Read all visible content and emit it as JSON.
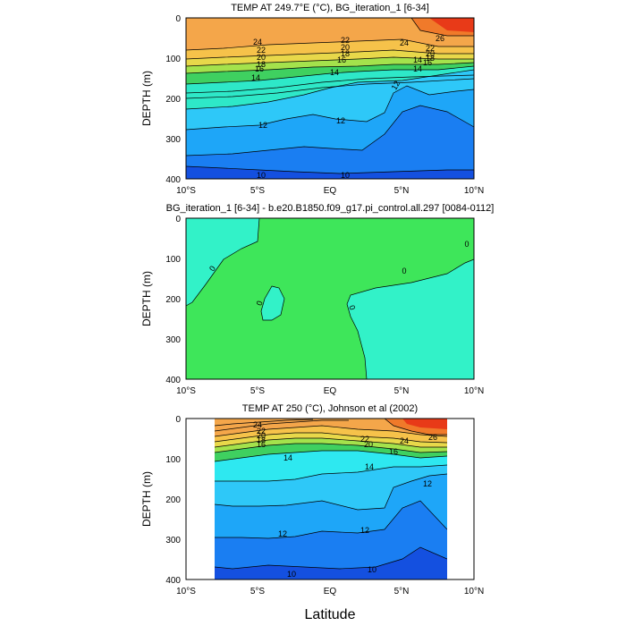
{
  "chart_data": [
    {
      "type": "contour",
      "title": "TEMP AT 249.7°E (°C), BG_iteration_1 [6-34]",
      "xlabel": "Latitude",
      "ylabel": "DEPTH (m)",
      "xlim": [
        -10,
        10
      ],
      "ylim": [
        400,
        0
      ],
      "x_ticks": [
        "10°S",
        "5°S",
        "EQ",
        "5°N",
        "10°N"
      ],
      "y_ticks": [
        "0",
        "100",
        "200",
        "300",
        "400"
      ],
      "contour_labels": [
        "24",
        "22",
        "20",
        "18",
        "16",
        "14",
        "12",
        "12",
        "12",
        "10",
        "10",
        "22",
        "20",
        "18",
        "16",
        "14",
        "14",
        "24",
        "26",
        "22",
        "20",
        "18",
        "16",
        "14"
      ],
      "bands": [
        {
          "range": "24-28",
          "color": "#f4a64a"
        },
        {
          "range": "22-24",
          "color": "#f6c24a"
        },
        {
          "range": "20-22",
          "color": "#e8d84a"
        },
        {
          "range": "18-20",
          "color": "#a4e24c"
        },
        {
          "range": "16-18",
          "color": "#3fd060"
        },
        {
          "range": "14-16",
          "color": "#2ee8c8"
        },
        {
          "range": "12-14",
          "color": "#2ec8f8"
        },
        {
          "range": "11-12",
          "color": "#1ea6f8"
        },
        {
          "range": "10-11",
          "color": "#1a7ef2"
        },
        {
          "range": "<10",
          "color": "#1450e0"
        }
      ]
    },
    {
      "type": "contour",
      "title": "BG_iteration_1 [6-34] - b.e20.B1850.f09_g17.pi_control.all.297 [0084-0112]",
      "xlabel": "Latitude",
      "ylabel": "DEPTH (m)",
      "xlim": [
        -10,
        10
      ],
      "ylim": [
        400,
        0
      ],
      "x_ticks": [
        "10°S",
        "5°S",
        "EQ",
        "5°N",
        "10°N"
      ],
      "y_ticks": [
        "0",
        "100",
        "200",
        "300",
        "400"
      ],
      "contour_labels": [
        "0",
        "0",
        "0",
        "0",
        "0"
      ],
      "bands": [
        {
          "range": "<0",
          "color": "#32f2c8"
        },
        {
          "range": "0-2",
          "color": "#3ee65a"
        }
      ]
    },
    {
      "type": "contour",
      "title": "TEMP AT 250 (°C), Johnson et al (2002)",
      "xlabel": "Latitude",
      "ylabel": "DEPTH (m)",
      "xlim": [
        -10,
        10
      ],
      "ylim": [
        400,
        0
      ],
      "x_ticks": [
        "10°S",
        "5°S",
        "EQ",
        "5°N",
        "10°N"
      ],
      "y_ticks": [
        "0",
        "100",
        "200",
        "300",
        "400"
      ],
      "contour_labels": [
        "24",
        "22",
        "20",
        "18",
        "16",
        "14",
        "14",
        "12",
        "12",
        "12",
        "10",
        "10",
        "22",
        "20",
        "16",
        "24",
        "26"
      ],
      "data_extent_lat": [
        -8,
        8
      ],
      "bands": [
        {
          "range": "24-28",
          "color": "#f4a64a"
        },
        {
          "range": "22-24",
          "color": "#f6c24a"
        },
        {
          "range": "20-22",
          "color": "#e8d84a"
        },
        {
          "range": "18-20",
          "color": "#a4e24c"
        },
        {
          "range": "16-18",
          "color": "#3fd060"
        },
        {
          "range": "14-16",
          "color": "#2ee8f0"
        },
        {
          "range": "12-14",
          "color": "#2ec8f8"
        },
        {
          "range": "11-12",
          "color": "#1ea6f8"
        },
        {
          "range": "10-11",
          "color": "#1a7ef2"
        },
        {
          "range": "<10",
          "color": "#1450e0"
        }
      ]
    }
  ]
}
